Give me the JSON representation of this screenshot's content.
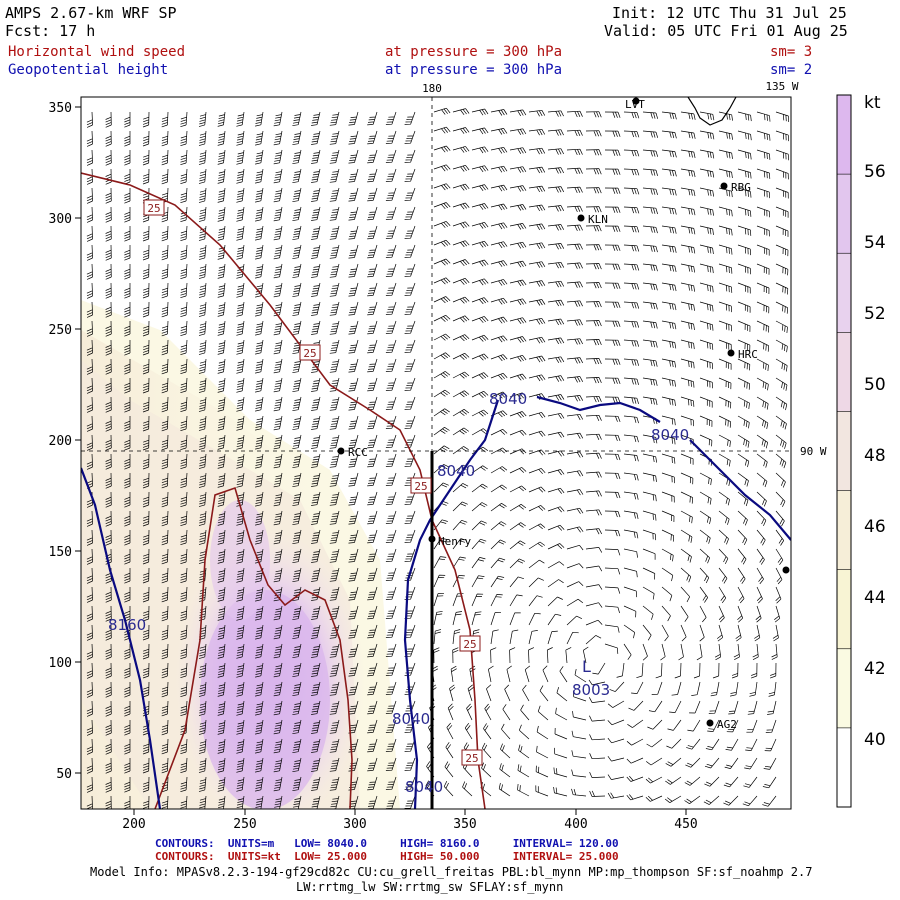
{
  "header": {
    "model": "AMPS 2.67-km WRF SP",
    "forecast": "Fcst:   17 h",
    "init": "Init: 12 UTC Thu 31 Jul 25",
    "valid": "Valid: 05 UTC Fri 01 Aug 25"
  },
  "fields": [
    {
      "name": "Horizontal wind speed",
      "level": "at pressure =  300 hPa",
      "smooth": "sm= 3",
      "color": "#b01010"
    },
    {
      "name": "Geopotential height",
      "level": "at pressure =  300 hPa",
      "smooth": "sm= 2",
      "color": "#1010b0"
    }
  ],
  "map": {
    "x_ticks": [
      "200",
      "250",
      "300",
      "350",
      "400",
      "450"
    ],
    "y_ticks": [
      "50",
      "100",
      "150",
      "200",
      "250",
      "300",
      "350"
    ],
    "lon_labels": {
      "top_180": "180",
      "top_135w": "135 W",
      "right_90w": "90 W"
    },
    "stations": [
      "LVT",
      "RBG",
      "KLN",
      "HRC",
      "RCC",
      "Henry",
      "AG2"
    ],
    "height_labels": [
      "8040",
      "8040",
      "8040",
      "8040",
      "8040",
      "8160",
      "8003"
    ],
    "low_marker": "L",
    "speed_labels": [
      "25",
      "25",
      "25",
      "25",
      "25"
    ]
  },
  "colorbar": {
    "unit": "kt",
    "labels": [
      "56",
      "54",
      "52",
      "50",
      "48",
      "46",
      "44",
      "42",
      "40"
    ],
    "colors": [
      "#ddb8ee",
      "#e2c6ee",
      "#e8d2ee",
      "#eed8e6",
      "#f2e6e0",
      "#f6eed8",
      "#f8f4d4",
      "#fafae2",
      "#ffffff"
    ]
  },
  "contours_info": {
    "line1": {
      "label": "CONTOURS:",
      "units": "UNITS=m",
      "low": "LOW=   8040.0",
      "high": "HIGH=  8160.0",
      "interval": "INTERVAL=   120.00",
      "color": "#1010b0"
    },
    "line2": {
      "label": "CONTOURS:",
      "units": "UNITS=kt",
      "low": "LOW=  25.000",
      "high": "HIGH=  50.000",
      "interval": "INTERVAL=  25.000",
      "color": "#b01010"
    }
  },
  "model_info": {
    "line1": "Model Info: MPASv8.2.3-194-gf29cd82c CU:cu_grell_freitas PBL:bl_mynn MP:mp_thompson SF:sf_noahmp 2.7",
    "line2": "LW:rrtmg_lw SW:rrtmg_sw SFLAY:sf_mynn"
  }
}
